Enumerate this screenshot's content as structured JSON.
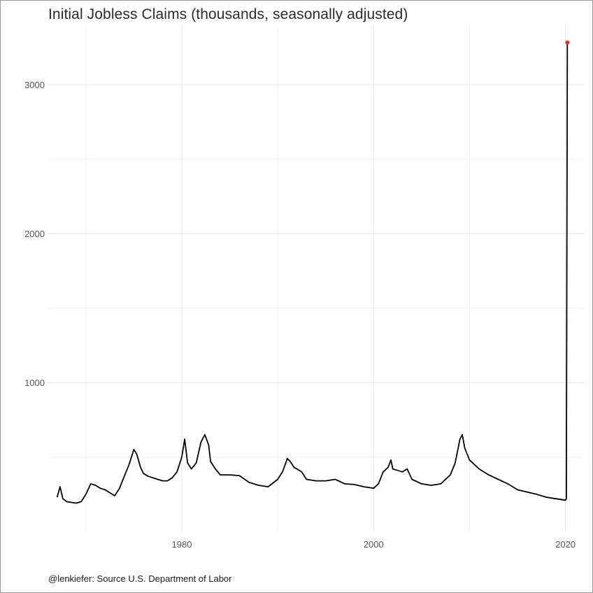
{
  "title": "Initial Jobless Claims (thousands, seasonally adjusted)",
  "caption": "@lenkiefer: Source U.S. Department of Labor",
  "colors": {
    "line": "#000000",
    "highlight": "#e03030",
    "grid": "#e3e3e3"
  },
  "chart_data": {
    "type": "line",
    "title": "Initial Jobless Claims (thousands, seasonally adjusted)",
    "xlabel": "",
    "ylabel": "",
    "xlim": [
      1966,
      2022
    ],
    "ylim": [
      0,
      3400
    ],
    "x_ticks": [
      1980,
      2000,
      2020
    ],
    "y_ticks": [
      1000,
      2000,
      3000
    ],
    "grid": true,
    "series": [
      {
        "x": [
          1967.0,
          1967.3,
          1967.6,
          1968.0,
          1968.5,
          1969.0,
          1969.5,
          1970.0,
          1970.5,
          1971.0,
          1971.5,
          1972.0,
          1972.5,
          1973.0,
          1973.5,
          1974.0,
          1974.5,
          1975.0,
          1975.3,
          1975.7,
          1976.0,
          1976.5,
          1977.0,
          1977.5,
          1978.0,
          1978.5,
          1979.0,
          1979.5,
          1980.0,
          1980.3,
          1980.6,
          1981.0,
          1981.5,
          1982.0,
          1982.4,
          1982.8,
          1983.0,
          1983.5,
          1984.0,
          1985.0,
          1986.0,
          1987.0,
          1988.0,
          1989.0,
          1990.0,
          1990.5,
          1991.0,
          1991.3,
          1991.7,
          1992.0,
          1992.5,
          1993.0,
          1994.0,
          1995.0,
          1996.0,
          1997.0,
          1998.0,
          1999.0,
          2000.0,
          2000.5,
          2001.0,
          2001.5,
          2001.8,
          2002.0,
          2002.5,
          2003.0,
          2003.5,
          2004.0,
          2005.0,
          2006.0,
          2007.0,
          2008.0,
          2008.5,
          2009.0,
          2009.25,
          2009.5,
          2010.0,
          2010.5,
          2011.0,
          2012.0,
          2013.0,
          2014.0,
          2015.0,
          2016.0,
          2017.0,
          2018.0,
          2019.0,
          2019.5,
          2020.0,
          2020.1,
          2020.2
        ],
        "values": [
          230,
          300,
          220,
          200,
          195,
          190,
          200,
          250,
          320,
          310,
          290,
          280,
          260,
          240,
          290,
          370,
          450,
          550,
          520,
          430,
          390,
          370,
          360,
          350,
          340,
          340,
          360,
          400,
          500,
          620,
          460,
          420,
          460,
          600,
          650,
          580,
          470,
          420,
          380,
          380,
          375,
          330,
          310,
          300,
          350,
          400,
          490,
          470,
          430,
          420,
          400,
          350,
          340,
          340,
          350,
          320,
          315,
          300,
          290,
          320,
          400,
          430,
          480,
          420,
          410,
          400,
          420,
          350,
          320,
          310,
          320,
          380,
          460,
          620,
          650,
          560,
          480,
          450,
          420,
          380,
          350,
          320,
          280,
          265,
          250,
          230,
          220,
          215,
          210,
          220,
          3283
        ]
      }
    ],
    "highlight_point": {
      "x": 2020.2,
      "y": 3283
    }
  }
}
